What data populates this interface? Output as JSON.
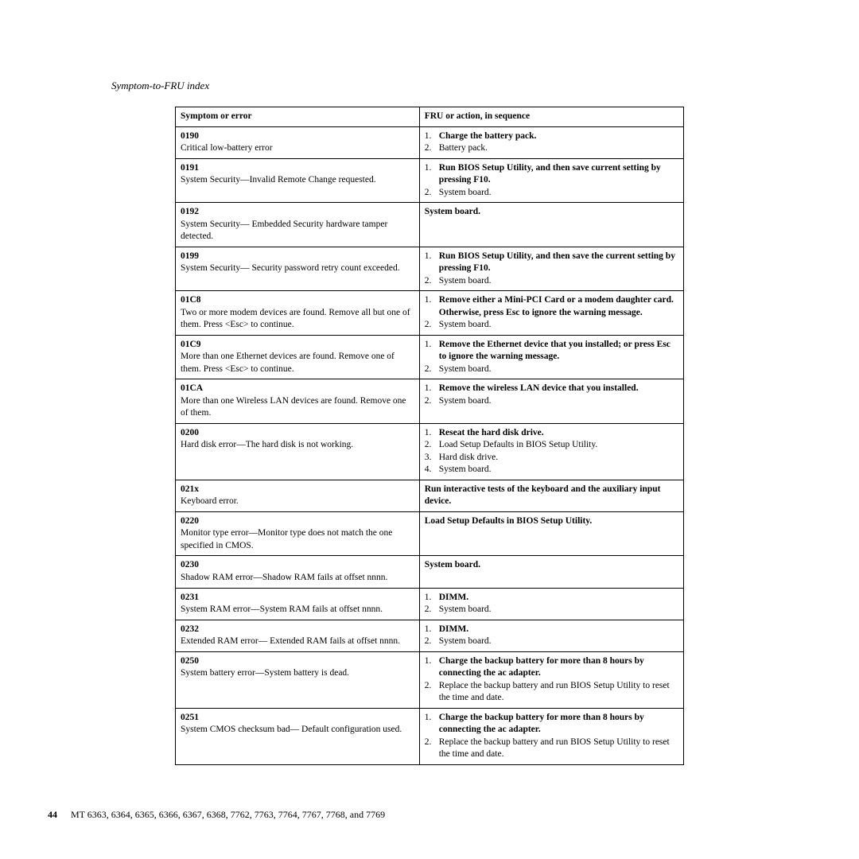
{
  "section_header": "Symptom-to-FRU index",
  "columns": {
    "symptom": "Symptom or error",
    "fru": "FRU or action, in sequence"
  },
  "rows": [
    {
      "code": "0190",
      "desc": "Critical low-battery error",
      "actions": [
        {
          "n": "1.",
          "text": "Charge the battery pack.",
          "bold": true
        },
        {
          "n": "2.",
          "text": "Battery pack.",
          "bold": false
        }
      ]
    },
    {
      "code": "0191",
      "desc": "System Security—Invalid Remote Change requested.",
      "actions": [
        {
          "n": "1.",
          "text": "Run BIOS Setup Utility, and then save current setting by pressing F10.",
          "bold": true
        },
        {
          "n": "2.",
          "text": "System board.",
          "bold": false
        }
      ]
    },
    {
      "code": "0192",
      "desc": "System Security— Embedded Security hardware tamper detected.",
      "plain": "System board.",
      "plain_bold": true
    },
    {
      "code": "0199",
      "desc": "System Security— Security password retry count exceeded.",
      "actions": [
        {
          "n": "1.",
          "text": "Run BIOS Setup Utility, and then save the current setting by pressing F10.",
          "bold": true
        },
        {
          "n": "2.",
          "text": "System board.",
          "bold": false
        }
      ]
    },
    {
      "code": "01C8",
      "desc": "Two or more modem devices are found. Remove all but one of them. Press <Esc> to continue.",
      "actions": [
        {
          "n": "1.",
          "text": "Remove either a Mini-PCI Card or a modem daughter card. Otherwise, press Esc to ignore the warning message.",
          "bold": true
        },
        {
          "n": "2.",
          "text": "System board.",
          "bold": false
        }
      ]
    },
    {
      "code": "01C9",
      "desc": "More than one Ethernet devices are found. Remove one of them. Press <Esc> to continue.",
      "actions": [
        {
          "n": "1.",
          "text": "Remove the Ethernet device that you installed; or press Esc to ignore the warning message.",
          "bold": true
        },
        {
          "n": "2.",
          "text": "System board.",
          "bold": false
        }
      ]
    },
    {
      "code": "01CA",
      "desc": "More than one Wireless LAN devices are found. Remove one of them.",
      "actions": [
        {
          "n": "1.",
          "text": "Remove the wireless LAN device that you installed.",
          "bold": true
        },
        {
          "n": "2.",
          "text": "System board.",
          "bold": false
        }
      ]
    },
    {
      "code": "0200",
      "desc": "Hard disk error—The hard disk is not working.",
      "actions": [
        {
          "n": "1.",
          "text": "Reseat the hard disk drive.",
          "bold": true
        },
        {
          "n": "2.",
          "text": "Load Setup Defaults in BIOS Setup Utility.",
          "bold": false
        },
        {
          "n": "3.",
          "text": "Hard disk drive.",
          "bold": false
        },
        {
          "n": "4.",
          "text": "System board.",
          "bold": false
        }
      ]
    },
    {
      "code": "021x",
      "desc": "Keyboard error.",
      "plain": "Run interactive tests of the keyboard and the auxiliary input device.",
      "plain_bold": true
    },
    {
      "code": "0220",
      "desc": "Monitor type error—Monitor type does not match the one specified in CMOS.",
      "plain": "Load Setup Defaults in BIOS Setup Utility.",
      "plain_bold": true
    },
    {
      "code": "0230",
      "desc": "Shadow RAM error—Shadow RAM fails at offset nnnn.",
      "plain": "System board.",
      "plain_bold": true
    },
    {
      "code": "0231",
      "desc": "System RAM error—System RAM fails at offset nnnn.",
      "actions": [
        {
          "n": "1.",
          "text": "DIMM.",
          "bold": true
        },
        {
          "n": "2.",
          "text": "System board.",
          "bold": false
        }
      ]
    },
    {
      "code": "0232",
      "desc": "Extended RAM error— Extended RAM fails at offset nnnn.",
      "actions": [
        {
          "n": "1.",
          "text": "DIMM.",
          "bold": true
        },
        {
          "n": "2.",
          "text": "System board.",
          "bold": false
        }
      ]
    },
    {
      "code": "0250",
      "desc": "System battery error—System battery is dead.",
      "actions": [
        {
          "n": "1.",
          "text": "Charge the backup battery for more than 8 hours by connecting the ac adapter.",
          "bold": true
        },
        {
          "n": "2.",
          "text": "Replace the backup battery and run BIOS Setup Utility to reset the time and date.",
          "bold": false
        }
      ]
    },
    {
      "code": "0251",
      "desc": "System CMOS checksum bad— Default configuration used.",
      "actions": [
        {
          "n": "1.",
          "text": "Charge the backup battery for more than 8 hours by connecting the ac adapter.",
          "bold": true
        },
        {
          "n": "2.",
          "text": "Replace the backup battery and run BIOS Setup Utility to reset the time and date.",
          "bold": false
        }
      ]
    }
  ],
  "footer": {
    "page_number": "44",
    "text": "MT 6363, 6364, 6365, 6366, 6367, 6368, 7762, 7763, 7764, 7767, 7768, and 7769"
  }
}
